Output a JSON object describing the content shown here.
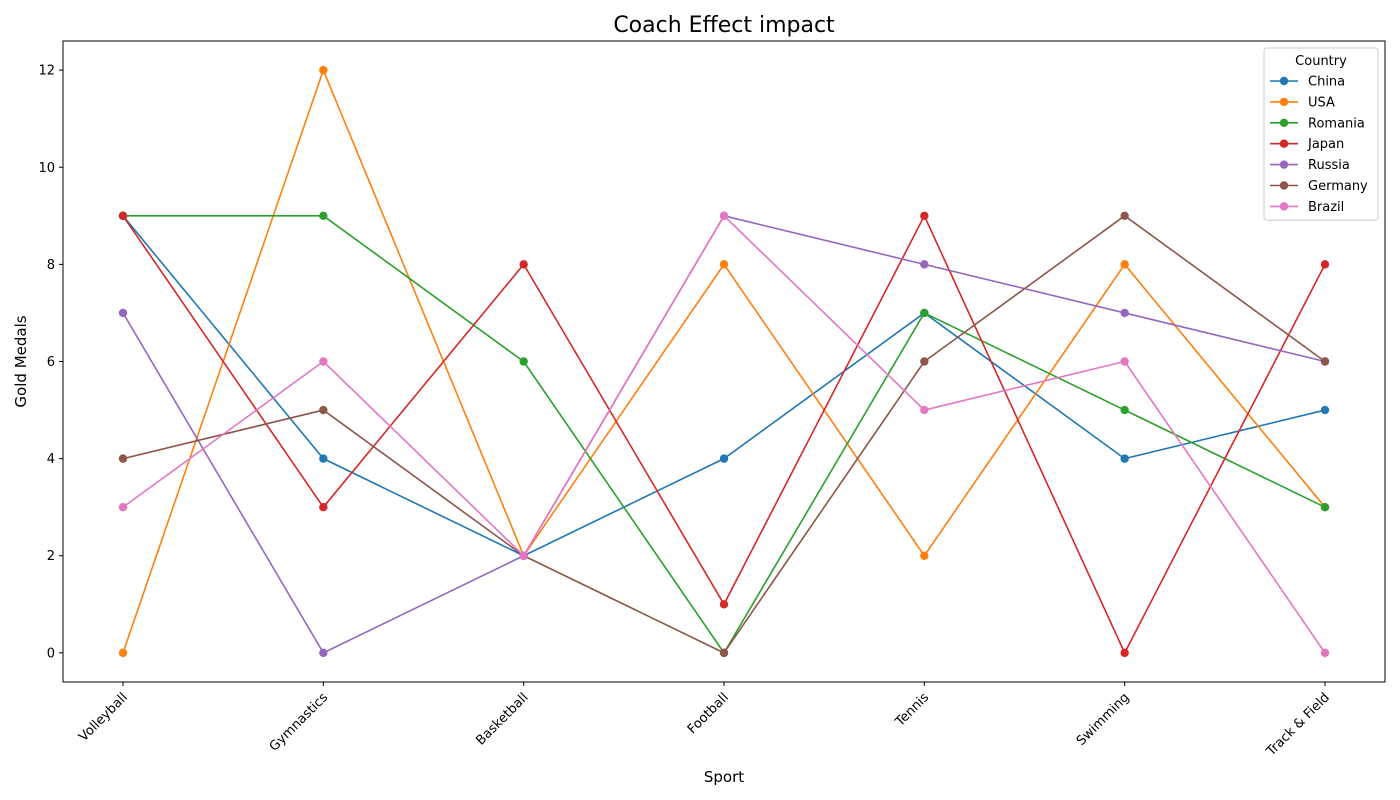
{
  "chart_data": {
    "type": "line",
    "title": "Coach Effect impact",
    "xlabel": "Sport",
    "ylabel": "Gold Medals",
    "categories": [
      "Volleyball",
      "Gymnastics",
      "Basketball",
      "Football",
      "Tennis",
      "Swimming",
      "Track & Field"
    ],
    "ylim": [
      -0.6,
      12.6
    ],
    "yticks": [
      0,
      2,
      4,
      6,
      8,
      10,
      12
    ],
    "grid": false,
    "legend": {
      "title": "Country",
      "placement": "top-right"
    },
    "series": [
      {
        "name": "China",
        "color": "#1f77b4",
        "values": [
          9,
          4,
          2,
          4,
          7,
          4,
          5
        ]
      },
      {
        "name": "USA",
        "color": "#ff7f0e",
        "values": [
          0,
          12,
          2,
          8,
          2,
          8,
          3
        ]
      },
      {
        "name": "Romania",
        "color": "#2ca02c",
        "values": [
          9,
          9,
          6,
          0,
          7,
          5,
          3
        ]
      },
      {
        "name": "Japan",
        "color": "#d62728",
        "values": [
          9,
          3,
          8,
          1,
          9,
          0,
          8
        ]
      },
      {
        "name": "Russia",
        "color": "#9467bd",
        "values": [
          7,
          0,
          2,
          9,
          8,
          7,
          6
        ]
      },
      {
        "name": "Germany",
        "color": "#8c564b",
        "values": [
          4,
          5,
          2,
          0,
          6,
          9,
          6
        ]
      },
      {
        "name": "Brazil",
        "color": "#e377c2",
        "values": [
          3,
          6,
          2,
          9,
          5,
          6,
          0
        ]
      }
    ]
  }
}
